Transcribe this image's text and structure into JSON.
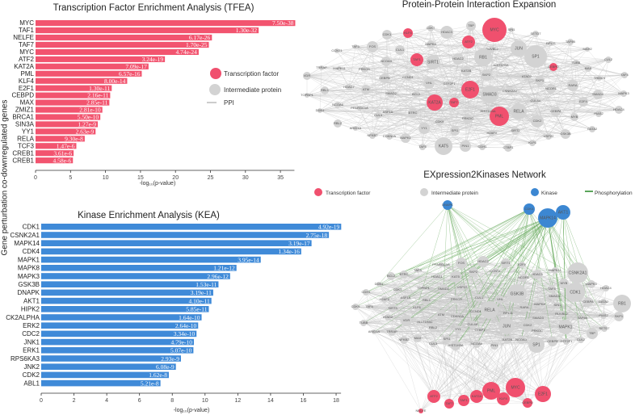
{
  "shared_ylabel": "Gene perturbation co-downregulated genes",
  "colors": {
    "tf": "#f0506e",
    "intermediate": "#d3d3d3",
    "kinase": "#3c87d2",
    "ppi": "#cccccc",
    "phosphorylation": "#5aa55a",
    "kea_bar": "#3f8ad8",
    "tfea_bar": "#f2546f"
  },
  "legend_top": {
    "tf": "Transcription factor",
    "intermediate": "Intermediate protein",
    "ppi": "PPI"
  },
  "chart_data": [
    {
      "type": "bar",
      "orientation": "horizontal",
      "title": "Transcription Factor Enrichment Analysis (TFEA)",
      "xlabel": "-log₁₀(p-value)",
      "xlim": [
        0,
        37
      ],
      "xticks": [
        0,
        5,
        10,
        15,
        20,
        25,
        30,
        35
      ],
      "categories": [
        "MYC",
        "TAF1",
        "NELFE",
        "TAF7",
        "MYC",
        "ATF2",
        "KAT2A",
        "PML",
        "KLF4",
        "E2F1",
        "CEBPD",
        "MAX",
        "ZMIZ1",
        "BRCA1",
        "SIN3A",
        "YY1",
        "RELA",
        "TCF3",
        "CREB1",
        "CREB1"
      ],
      "values": [
        37.12,
        31.89,
        25.21,
        24.77,
        23.32,
        18.49,
        16.15,
        15.18,
        13.1,
        10.89,
        10.67,
        10.55,
        9.55,
        9.26,
        8.9,
        8.58,
        7.03,
        5.83,
        5.44,
        5.34
      ],
      "labels": [
        "7.50e-38",
        "1.30e-32",
        "6.17e-26",
        "1.70e-25",
        "4.74e-24",
        "3.24e-19",
        "7.09e-17",
        "6.57e-16",
        "8.00e-14",
        "1.30e-11",
        "2.16e-11",
        "2.85e-11",
        "2.81e-10",
        "5.50e-10",
        "1.27e-9",
        "2.63e-9",
        "9.30e-8",
        "1.47e-6",
        "3.61e-6",
        "4.58e-6"
      ]
    },
    {
      "type": "bar",
      "orientation": "horizontal",
      "title": "Kinase Enrichment Analysis (KEA)",
      "xlabel": "-log₁₀(p-value)",
      "xlim": [
        0,
        18.3
      ],
      "xticks": [
        0,
        2,
        4,
        6,
        8,
        10,
        12,
        14,
        16,
        18
      ],
      "categories": [
        "CDK1",
        "CSNK2A1",
        "MAPK14",
        "CDK4",
        "MAPK1",
        "MAPK8",
        "MAPK3",
        "GSK3B",
        "DNAPK",
        "AKT1",
        "HIPK2",
        "CK2ALPHA",
        "ERK2",
        "CDC2",
        "JNK1",
        "ERK1",
        "RPS6KA3",
        "JNK2",
        "CDK2",
        "ABL1"
      ],
      "values": [
        18.31,
        17.56,
        16.5,
        15.87,
        13.4,
        11.92,
        11.53,
        10.82,
        10.5,
        10.39,
        10.23,
        9.79,
        9.58,
        9.48,
        9.32,
        9.29,
        8.53,
        8.22,
        7.79,
        7.28
      ],
      "labels": [
        "4.92e-19",
        "2.75e-18",
        "3.19e-17",
        "1.34e-16",
        "3.95e-14",
        "1.21e-12",
        "2.96e-12",
        "1.53e-11",
        "3.19e-11",
        "4.10e-11",
        "5.85e-11",
        "1.64e-10",
        "2.64e-10",
        "3.34e-10",
        "4.79e-10",
        "5.07e-10",
        "2.93e-9",
        "6.08e-9",
        "1.62e-8",
        "5.21e-8"
      ]
    }
  ],
  "ppi": {
    "title": "Protein-Protein Interaction Expansion",
    "tf": [
      "MYC",
      "KLF4",
      "ATF2",
      "TAF1",
      "CEBPD",
      "E2F1",
      "KAT2A",
      "TAF7",
      "PML"
    ],
    "intermediate": [
      "TBP",
      "HDAC3",
      "CDK7",
      "CDK1",
      "SIN1",
      "SETD7",
      "TAF9B",
      "MAPK8",
      "RUVBL2",
      "JUN",
      "RPL11",
      "SIAH2",
      "FOS",
      "TAF3",
      "CCNT1",
      "CUL1",
      "SP1",
      "CUL2",
      "SIRT1",
      "HDAC2",
      "RB1",
      "NCOA3",
      "TUBB",
      "TRRAP",
      "MAPK11",
      "PRKCD",
      "MAX",
      "HIST1H3A",
      "TAF4",
      "VDR",
      "CEBPB",
      "CCND1",
      "KAT2B",
      "SKP2",
      "ATAD2",
      "TRIM24",
      "VHL",
      "GTF2F1",
      "SKP1",
      "RARA",
      "SMAD3",
      "CSNK2A1",
      "NCOR1",
      "SMAD4",
      "MAPK3",
      "RBL1",
      "HDAC7",
      "ATM",
      "SMAD2",
      "BCL2",
      "TOPBP1",
      "CUL4A",
      "E2F4",
      "NCOA6",
      "PPARGC1A",
      "DDB1",
      "ASF1A",
      "BTRC",
      "CUL3",
      "HIST1H4A",
      "RELA",
      "CEBPA",
      "HDAC4",
      "PIAS2",
      "MYB",
      "RBL2",
      "CDK9",
      "PRKDC",
      "CDK2",
      "ARID1A",
      "NFKB2",
      "CDKN2A",
      "MAPK1",
      "YY1",
      "SPI1",
      "H2AFX",
      "SIRT2",
      "USP22",
      "GSK3B",
      "GATA2",
      "KLF6",
      "TAF5",
      "KAT5",
      "PIN1",
      "CDH1",
      "CTBP1"
    ]
  },
  "e2k": {
    "title": "EXpression2Kinases Network",
    "legend": {
      "tf": "Transcription factor",
      "intermediate": "Intermediate protein",
      "kinase": "Kinase",
      "phosphorylation": "Phosphorylation"
    },
    "kinases": [
      "DNAPK",
      "CDK4",
      "MAPK14",
      "AKT1"
    ],
    "tf": [
      "ATF2",
      "TAF7",
      "TAF1",
      "KAT2A",
      "PML",
      "MYC",
      "KLF4",
      "CEBPD",
      "E2F1",
      "NELFE"
    ],
    "intermediate": [
      "FOS",
      "HDAC2",
      "SIRT1",
      "E2F4",
      "PPARGC1A",
      "TAF3",
      "BTRC",
      "BCL2",
      "HDAC1",
      "KAT5",
      "SKP2",
      "CCNT1",
      "NCOR1",
      "HDAC3",
      "MAPK11",
      "CSNK2A1",
      "DDB1",
      "CDK7",
      "TOPBP1",
      "SMAD2",
      "USP22",
      "GSK3B",
      "TAF4",
      "MYB",
      "MAPK3",
      "HDAC4",
      "CDH1",
      "H2AFX",
      "ASF1A",
      "RBL1",
      "PRKCD",
      "CUL1",
      "VHL",
      "SMAD4",
      "CDK1",
      "CDK9",
      "TAF5",
      "SIRT3",
      "KLF6",
      "CCND1",
      "RELA",
      "RARA",
      "MAPK8",
      "SIN1",
      "CEBPA",
      "GATA2",
      "RB1",
      "ATAD2",
      "ATM",
      "CDKN2A",
      "RPL11",
      "RUVBL2",
      "SMAD3",
      "PIAS2",
      "SKP1",
      "TUBB",
      "VDR",
      "HIST1H4C",
      "CUL4A",
      "JUN",
      "CDK2",
      "TAF9B",
      "ARID1A",
      "TRRAP",
      "RBL2",
      "YY1",
      "CTBP1",
      "MAPK1",
      "PRKDC",
      "SETD7",
      "TBP",
      "NFKB2",
      "MAX",
      "SPI1",
      "CUL3",
      "HIST1H3A",
      "NCOA6",
      "PIN1",
      "KAT2B",
      "NCOA3",
      "SP1",
      "CEBPB",
      "GTF2F1",
      "CUL2"
    ]
  }
}
